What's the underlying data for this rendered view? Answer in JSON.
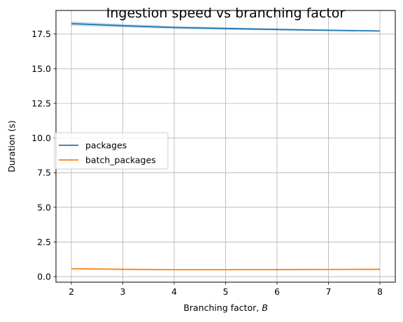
{
  "chart_data": {
    "type": "line",
    "title": "Ingestion speed vs branching factor",
    "xlabel": "Branching factor, ",
    "xlabel_var": "B",
    "ylabel": "Duration (s)",
    "xlim": [
      1.7,
      8.3
    ],
    "ylim": [
      -0.4,
      19.2
    ],
    "x": [
      2,
      3,
      4,
      5,
      6,
      7,
      8
    ],
    "xticks": [
      2,
      3,
      4,
      5,
      6,
      7,
      8
    ],
    "xtick_labels": [
      "2",
      "3",
      "4",
      "5",
      "6",
      "7",
      "8"
    ],
    "yticks": [
      0.0,
      2.5,
      5.0,
      7.5,
      10.0,
      12.5,
      15.0,
      17.5
    ],
    "ytick_labels": [
      "0.0",
      "2.5",
      "5.0",
      "7.5",
      "10.0",
      "12.5",
      "15.0",
      "17.5"
    ],
    "grid": true,
    "legend_position": "center-left",
    "series": [
      {
        "name": "packages",
        "color": "#1f77b4",
        "values": [
          18.25,
          18.1,
          17.97,
          17.9,
          17.83,
          17.77,
          17.72
        ],
        "band_low": [
          18.1,
          17.98,
          17.87,
          17.81,
          17.76,
          17.71,
          17.68
        ],
        "band_high": [
          18.42,
          18.22,
          18.08,
          17.99,
          17.9,
          17.83,
          17.77
        ]
      },
      {
        "name": "batch_packages",
        "color": "#ff7f0e",
        "values": [
          0.57,
          0.53,
          0.5,
          0.5,
          0.51,
          0.52,
          0.53
        ],
        "band_low": [
          0.53,
          0.5,
          0.48,
          0.48,
          0.49,
          0.5,
          0.51
        ],
        "band_high": [
          0.61,
          0.56,
          0.52,
          0.52,
          0.53,
          0.54,
          0.55
        ]
      }
    ]
  }
}
